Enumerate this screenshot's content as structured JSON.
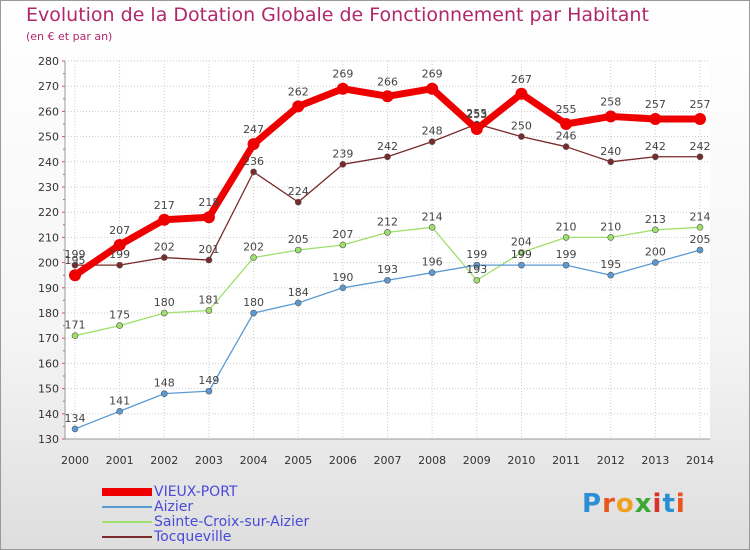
{
  "title": "Evolution de la Dotation Globale de Fonctionnement par Habitant",
  "subtitle": "(en € et par an)",
  "logo": {
    "letters": [
      "P",
      "r",
      "o",
      "x",
      "i",
      "t",
      "i"
    ],
    "colors": [
      "#2b8fd6",
      "#e8551f",
      "#f0a020",
      "#3aa835",
      "#d8302a",
      "#2b8fd6",
      "#e8551f"
    ]
  },
  "chart_data": {
    "type": "line",
    "x": [
      "2000",
      "2001",
      "2002",
      "2003",
      "2004",
      "2005",
      "2006",
      "2007",
      "2008",
      "2009",
      "2010",
      "2011",
      "2012",
      "2013",
      "2014"
    ],
    "ylim": [
      130,
      280
    ],
    "yticks": [
      130,
      140,
      150,
      160,
      170,
      180,
      190,
      200,
      210,
      220,
      230,
      240,
      250,
      260,
      270,
      280
    ],
    "grid": true,
    "legend_position": "bottom-left",
    "series": [
      {
        "name": "VIEUX-PORT",
        "color": "#ee0000",
        "width": 7,
        "marker": 6,
        "values": [
          195,
          207,
          217,
          218,
          247,
          262,
          269,
          266,
          269,
          253,
          267,
          255,
          258,
          257,
          257
        ]
      },
      {
        "name": "Aizier",
        "color": "#5b9bd5",
        "width": 1.3,
        "marker": 3,
        "values": [
          134,
          141,
          148,
          149,
          180,
          184,
          190,
          193,
          196,
          199,
          199,
          199,
          195,
          200,
          205
        ]
      },
      {
        "name": "Sainte-Croix-sur-Aizier",
        "color": "#9ee06b",
        "width": 1.3,
        "marker": 3,
        "values": [
          171,
          175,
          180,
          181,
          202,
          205,
          207,
          212,
          214,
          193,
          204,
          210,
          210,
          213,
          214
        ]
      },
      {
        "name": "Tocqueville",
        "color": "#7a2a2a",
        "width": 1.3,
        "marker": 3,
        "values": [
          199,
          199,
          202,
          201,
          236,
          224,
          239,
          242,
          248,
          255,
          250,
          246,
          240,
          242,
          242
        ]
      }
    ]
  }
}
